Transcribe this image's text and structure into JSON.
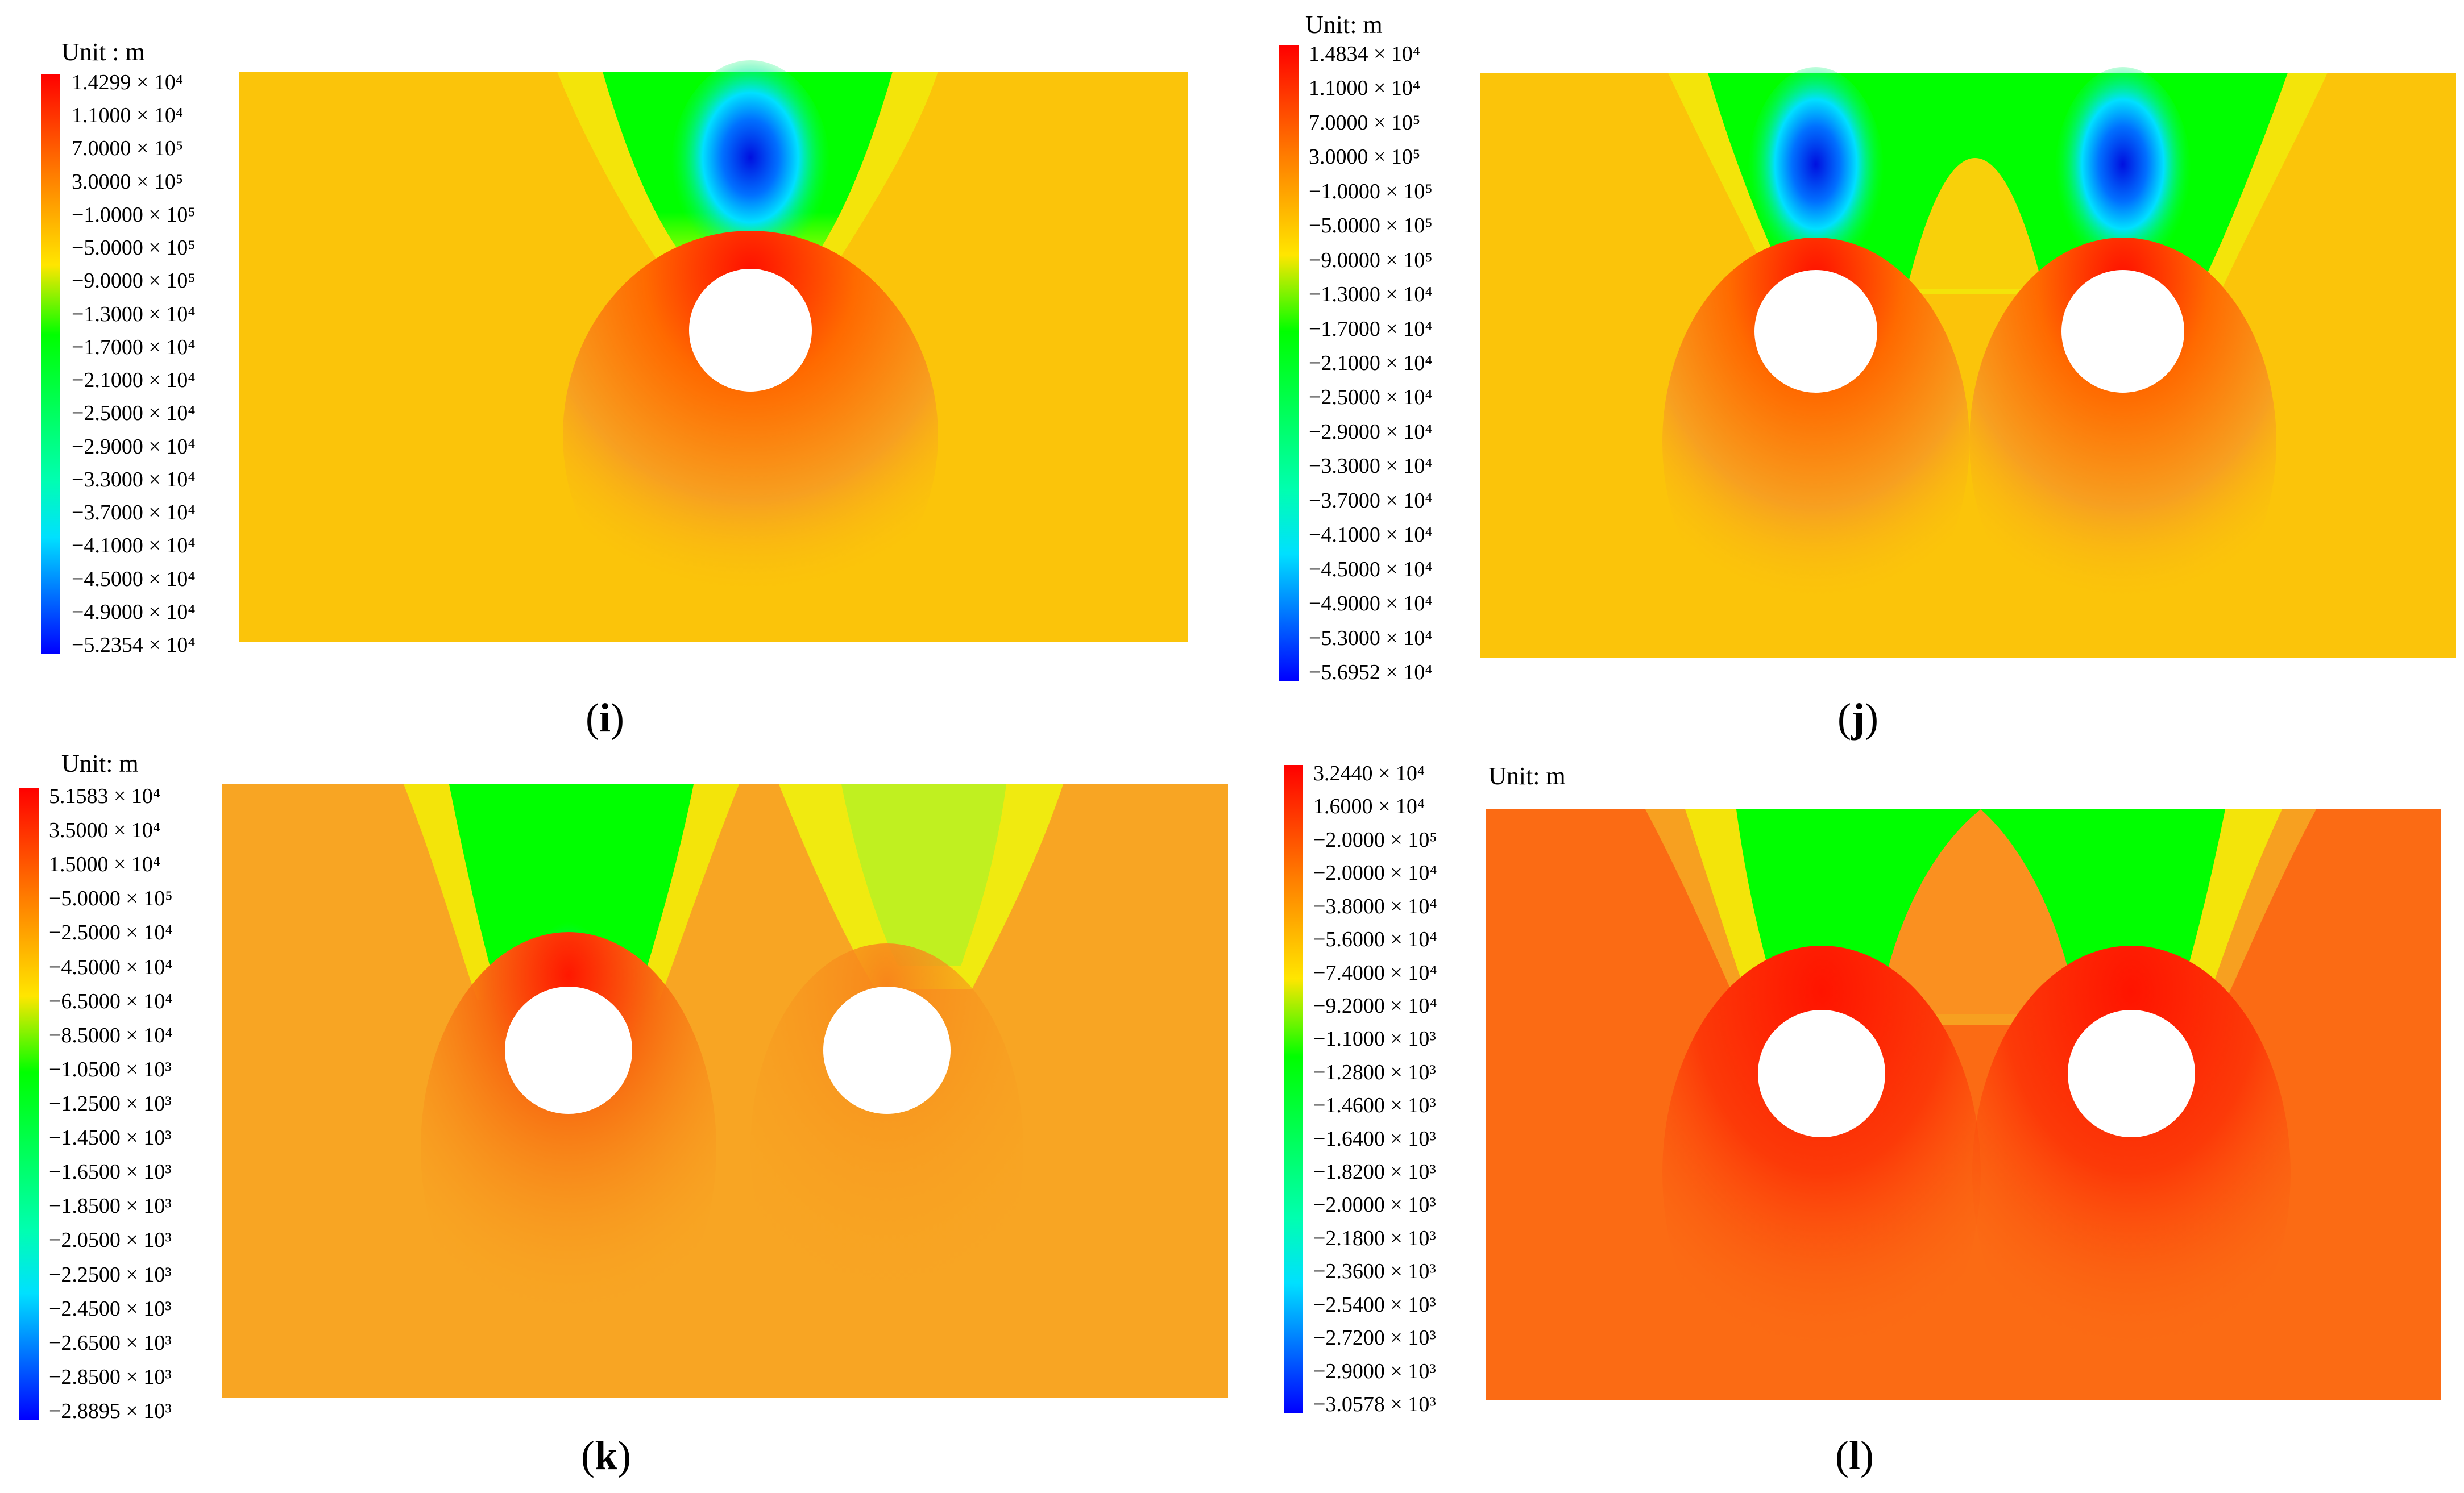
{
  "panels": [
    {
      "caption_letter": "i",
      "unit_label": "Unit : m",
      "legend": [
        "1.4299 × 10⁴",
        "1.1000 × 10⁴",
        "7.0000 × 10⁵",
        "3.0000 × 10⁵",
        "−1.0000 × 10⁵",
        "−5.0000 × 10⁵",
        "−9.0000 × 10⁵",
        "−1.3000 × 10⁴",
        "−1.7000 × 10⁴",
        "−2.1000 × 10⁴",
        "−2.5000 × 10⁴",
        "−2.9000 × 10⁴",
        "−3.3000 × 10⁴",
        "−3.7000 × 10⁴",
        "−4.1000 × 10⁴",
        "−4.5000 × 10⁴",
        "−4.9000 × 10⁴",
        "−5.2354 × 10⁴"
      ],
      "colors": {
        "background": "#fbc40a",
        "hole": "#ffffff"
      }
    },
    {
      "caption_letter": "j",
      "unit_label": "Unit: m",
      "legend": [
        "1.4834 × 10⁴",
        "1.1000 × 10⁴",
        "7.0000 × 10⁵",
        "3.0000 × 10⁵",
        "−1.0000 × 10⁵",
        "−5.0000 × 10⁵",
        "−9.0000 × 10⁵",
        "−1.3000 × 10⁴",
        "−1.7000 × 10⁴",
        "−2.1000 × 10⁴",
        "−2.5000 × 10⁴",
        "−2.9000 × 10⁴",
        "−3.3000 × 10⁴",
        "−3.7000 × 10⁴",
        "−4.1000 × 10⁴",
        "−4.5000 × 10⁴",
        "−4.9000 × 10⁴",
        "−5.3000 × 10⁴",
        "−5.6952 × 10⁴"
      ],
      "colors": {
        "background": "#fbc40a",
        "hole": "#ffffff"
      }
    },
    {
      "caption_letter": "k",
      "unit_label": "Unit: m",
      "legend": [
        "5.1583 × 10⁴",
        "3.5000 × 10⁴",
        "1.5000 × 10⁴",
        "−5.0000 × 10⁵",
        "−2.5000 × 10⁴",
        "−4.5000 × 10⁴",
        "−6.5000 × 10⁴",
        "−8.5000 × 10⁴",
        "−1.0500 × 10³",
        "−1.2500 × 10³",
        "−1.4500 × 10³",
        "−1.6500 × 10³",
        "−1.8500 × 10³",
        "−2.0500 × 10³",
        "−2.2500 × 10³",
        "−2.4500 × 10³",
        "−2.6500 × 10³",
        "−2.8500 × 10³",
        "−2.8895 × 10³"
      ],
      "colors": {
        "background": "#f8a523",
        "hole": "#ffffff"
      }
    },
    {
      "caption_letter": "l",
      "unit_label": "Unit: m",
      "legend": [
        "3.2440 × 10⁴",
        "1.6000 × 10⁴",
        "−2.0000 × 10⁵",
        "−2.0000 × 10⁴",
        "−3.8000 × 10⁴",
        "−5.6000 × 10⁴",
        "−7.4000 × 10⁴",
        "−9.2000 × 10⁴",
        "−1.1000 × 10³",
        "−1.2800 × 10³",
        "−1.4600 × 10³",
        "−1.6400 × 10³",
        "−1.8200 × 10³",
        "−2.0000 × 10³",
        "−2.1800 × 10³",
        "−2.3600 × 10³",
        "−2.5400 × 10³",
        "−2.7200 × 10³",
        "−2.9000 × 10³",
        "−3.0578 × 10³"
      ],
      "colors": {
        "background": "#fb6b14",
        "hole": "#ffffff"
      }
    }
  ]
}
